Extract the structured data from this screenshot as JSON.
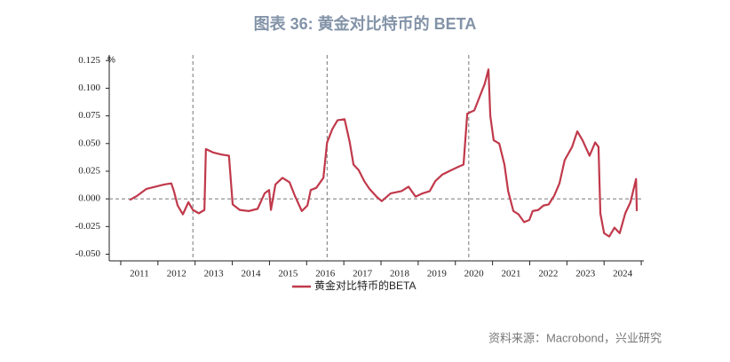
{
  "chart_data": {
    "type": "line",
    "title": "图表 36: 黄金对比特币的 BETA",
    "y_unit": "%",
    "source": "资料来源：Macrobond，兴业研究",
    "xlim": [
      2010.69,
      2025.07
    ],
    "xticks": [
      2011,
      2012,
      2013,
      2014,
      2015,
      2016,
      2017,
      2018,
      2019,
      2020,
      2021,
      2022,
      2023,
      2024,
      2025
    ],
    "x_labels": [
      "2011",
      "2012",
      "2013",
      "2014",
      "2015",
      "2016",
      "2017",
      "2018",
      "2019",
      "2020",
      "2021",
      "2022",
      "2023",
      "2024"
    ],
    "ylim": [
      -0.056,
      0.13
    ],
    "yticks": [
      {
        "value": -0.05,
        "label": "-0.050"
      },
      {
        "value": -0.025,
        "label": "-0.025"
      },
      {
        "value": 0,
        "label": "0.000"
      },
      {
        "value": 0.025,
        "label": "0.025"
      },
      {
        "value": 0.05,
        "label": "0.050"
      },
      {
        "value": 0.075,
        "label": "0.075"
      },
      {
        "value": 0.1,
        "label": "0.100"
      },
      0.125
    ],
    "zero_line": 0,
    "vlines": [
      2012.94,
      2016.55,
      2020.36
    ],
    "legend": "bottom",
    "series": [
      {
        "name": "黄金对比特币的BETA",
        "color": "#c0394b",
        "x": [
          2011.24,
          2011.45,
          2011.69,
          2011.93,
          2012.17,
          2012.36,
          2012.43,
          2012.53,
          2012.67,
          2012.82,
          2012.94,
          2013.1,
          2013.25,
          2013.29,
          2013.48,
          2013.72,
          2013.91,
          2014.01,
          2014.2,
          2014.44,
          2014.68,
          2014.87,
          2014.99,
          2015.04,
          2015.16,
          2015.35,
          2015.54,
          2015.68,
          2015.87,
          2016.02,
          2016.11,
          2016.26,
          2016.45,
          2016.55,
          2016.69,
          2016.83,
          2017.02,
          2017.16,
          2017.26,
          2017.4,
          2017.55,
          2017.69,
          2017.88,
          2018.02,
          2018.26,
          2018.55,
          2018.74,
          2018.93,
          2019.12,
          2019.31,
          2019.46,
          2019.65,
          2019.89,
          2020.08,
          2020.22,
          2020.32,
          2020.51,
          2020.65,
          2020.79,
          2020.89,
          2020.94,
          2021.03,
          2021.18,
          2021.32,
          2021.42,
          2021.56,
          2021.7,
          2021.85,
          2021.99,
          2022.08,
          2022.23,
          2022.37,
          2022.51,
          2022.66,
          2022.8,
          2022.94,
          2023.14,
          2023.28,
          2023.42,
          2023.61,
          2023.76,
          2023.85,
          2023.9,
          2024.0,
          2024.14,
          2024.28,
          2024.42,
          2024.57,
          2024.71,
          2024.86,
          2024.88
        ],
        "values": [
          -0.001,
          0.003,
          0.009,
          0.011,
          0.013,
          0.014,
          0.007,
          -0.006,
          -0.014,
          -0.003,
          -0.01,
          -0.013,
          -0.01,
          0.045,
          0.042,
          0.04,
          0.039,
          -0.005,
          -0.01,
          -0.011,
          -0.009,
          0.005,
          0.008,
          -0.01,
          0.013,
          0.019,
          0.015,
          0.003,
          -0.011,
          -0.006,
          0.008,
          0.01,
          0.019,
          0.051,
          0.063,
          0.071,
          0.072,
          0.051,
          0.031,
          0.026,
          0.016,
          0.009,
          0.002,
          -0.002,
          0.005,
          0.007,
          0.011,
          0.002,
          0.005,
          0.007,
          0.016,
          0.022,
          0.026,
          0.029,
          0.031,
          0.077,
          0.08,
          0.092,
          0.104,
          0.117,
          0.075,
          0.053,
          0.05,
          0.031,
          0.007,
          -0.011,
          -0.014,
          -0.021,
          -0.019,
          -0.011,
          -0.01,
          -0.006,
          -0.005,
          0.003,
          0.014,
          0.035,
          0.047,
          0.061,
          0.053,
          0.039,
          0.051,
          0.047,
          -0.013,
          -0.031,
          -0.034,
          -0.026,
          -0.031,
          -0.013,
          -0.003,
          0.018,
          -0.011
        ]
      }
    ]
  }
}
